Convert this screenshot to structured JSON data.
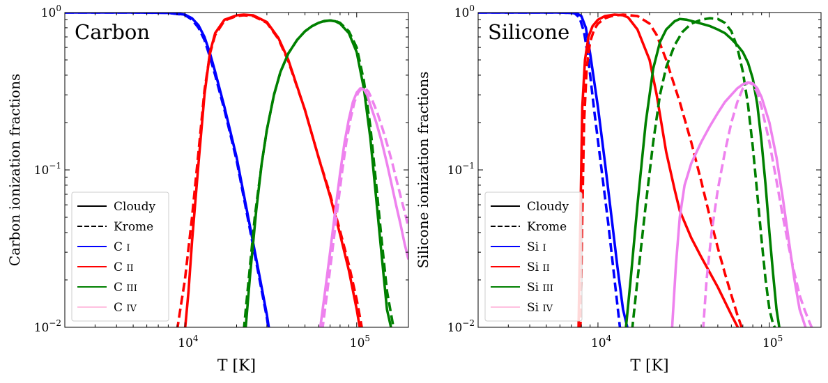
{
  "chart_data": [
    {
      "type": "line",
      "panel_label": "Carbon",
      "xlabel": "T [K]",
      "ylabel": "Carbon ionization fractions",
      "xscale": "log",
      "yscale": "log",
      "xlim": [
        2000,
        200000
      ],
      "ylim": [
        0.01,
        1
      ],
      "x_tick_labels": [
        {
          "base": "10",
          "exp": "4",
          "value": 10000
        },
        {
          "base": "10",
          "exp": "5",
          "value": 100000
        }
      ],
      "y_tick_labels": [
        {
          "base": "10",
          "exp": "0",
          "value": 1
        },
        {
          "base": "10",
          "exp": "−1",
          "value": 0.1
        },
        {
          "base": "10",
          "exp": "−2",
          "value": 0.01
        }
      ],
      "legend": {
        "position": "lower-left",
        "entries": [
          {
            "label": "Cloudy",
            "style": "solid",
            "color": "#000000"
          },
          {
            "label": "Krome",
            "style": "dashed",
            "color": "#000000"
          },
          {
            "label": "C I",
            "style": "solid",
            "color": "#0000ff"
          },
          {
            "label": "C II",
            "style": "solid",
            "color": "#ff0000"
          },
          {
            "label": "C III",
            "style": "solid",
            "color": "#008000"
          },
          {
            "label": "C IV",
            "style": "solid",
            "color": "#ffc0e0"
          }
        ]
      },
      "series": [
        {
          "name": "C I Cloudy",
          "color": "#0000ff",
          "style": "solid",
          "x": [
            2000,
            5000,
            8000,
            10000,
            11000,
            12000,
            13000,
            14000,
            15000,
            17000,
            20000,
            24000,
            27000,
            30000,
            31000
          ],
          "y": [
            1,
            1,
            0.995,
            0.97,
            0.92,
            0.83,
            0.7,
            0.55,
            0.42,
            0.25,
            0.12,
            0.043,
            0.022,
            0.012,
            0.0095
          ]
        },
        {
          "name": "C I Krome",
          "color": "#0000ff",
          "style": "dashed",
          "x": [
            2000,
            5000,
            8000,
            10000,
            11000,
            12000,
            13000,
            14000,
            15000,
            17000,
            20000,
            24000,
            27000,
            30000,
            31000
          ],
          "y": [
            1,
            1,
            0.995,
            0.965,
            0.9,
            0.8,
            0.67,
            0.52,
            0.4,
            0.24,
            0.115,
            0.041,
            0.021,
            0.0115,
            0.009
          ]
        },
        {
          "name": "C II Cloudy",
          "color": "#ff0000",
          "style": "solid",
          "x": [
            10000,
            10500,
            11000,
            12000,
            13000,
            14000,
            15000,
            17000,
            20000,
            22000,
            25000,
            30000,
            35000,
            40000,
            50000,
            60000,
            70000,
            80000,
            90000,
            100000,
            105000
          ],
          "y": [
            0.0095,
            0.017,
            0.035,
            0.11,
            0.3,
            0.56,
            0.74,
            0.9,
            0.96,
            0.97,
            0.96,
            0.87,
            0.69,
            0.5,
            0.24,
            0.12,
            0.068,
            0.039,
            0.023,
            0.013,
            0.0095
          ]
        },
        {
          "name": "C II Krome",
          "color": "#ff0000",
          "style": "dashed",
          "x": [
            9000,
            9500,
            10000,
            11000,
            12000,
            13000,
            14000,
            15000,
            17000,
            20000,
            22000,
            25000,
            30000,
            35000,
            40000,
            50000,
            60000,
            70000,
            80000,
            90000,
            100000,
            108000
          ],
          "y": [
            0.0095,
            0.014,
            0.02,
            0.05,
            0.13,
            0.32,
            0.55,
            0.72,
            0.89,
            0.95,
            0.96,
            0.95,
            0.86,
            0.68,
            0.49,
            0.24,
            0.12,
            0.07,
            0.041,
            0.025,
            0.015,
            0.0095
          ]
        },
        {
          "name": "C III Cloudy",
          "color": "#008000",
          "style": "solid",
          "x": [
            22500,
            24000,
            26000,
            28000,
            30000,
            33000,
            36000,
            40000,
            45000,
            50000,
            55000,
            60000,
            65000,
            70000,
            75000,
            80000,
            90000,
            100000,
            110000,
            120000,
            130000,
            140000,
            150000,
            160000
          ],
          "y": [
            0.0095,
            0.022,
            0.055,
            0.11,
            0.18,
            0.3,
            0.42,
            0.55,
            0.67,
            0.76,
            0.82,
            0.86,
            0.885,
            0.89,
            0.88,
            0.85,
            0.74,
            0.56,
            0.33,
            0.16,
            0.065,
            0.028,
            0.013,
            0.0095
          ]
        },
        {
          "name": "C III Krome",
          "color": "#008000",
          "style": "dashed",
          "x": [
            22000,
            23500,
            25500,
            28000,
            30000,
            33000,
            36000,
            40000,
            45000,
            50000,
            55000,
            60000,
            65000,
            70000,
            75000,
            80000,
            90000,
            100000,
            110000,
            120000,
            130000,
            140000,
            150000,
            165000
          ],
          "y": [
            0.0095,
            0.02,
            0.05,
            0.11,
            0.18,
            0.3,
            0.42,
            0.55,
            0.67,
            0.76,
            0.82,
            0.86,
            0.88,
            0.89,
            0.885,
            0.86,
            0.76,
            0.6,
            0.37,
            0.19,
            0.08,
            0.035,
            0.017,
            0.0095
          ]
        },
        {
          "name": "C IV Cloudy",
          "color": "#ee82ee",
          "style": "solid",
          "x": [
            61000,
            65000,
            70000,
            75000,
            80000,
            85000,
            90000,
            95000,
            100000,
            105000,
            110000,
            115000,
            120000,
            130000,
            140000,
            150000,
            160000,
            170000,
            180000,
            190000,
            200000
          ],
          "y": [
            0.0095,
            0.016,
            0.03,
            0.055,
            0.095,
            0.15,
            0.21,
            0.27,
            0.31,
            0.33,
            0.325,
            0.3,
            0.26,
            0.2,
            0.15,
            0.11,
            0.08,
            0.059,
            0.045,
            0.034,
            0.027
          ]
        },
        {
          "name": "C IV Krome",
          "color": "#ee82ee",
          "style": "dashed",
          "x": [
            63000,
            67000,
            72000,
            77000,
            82000,
            87000,
            92000,
            97000,
            102000,
            107000,
            112000,
            117000,
            122000,
            132000,
            142000,
            152000,
            162000,
            172000,
            182000,
            192000,
            200000
          ],
          "y": [
            0.0095,
            0.016,
            0.03,
            0.055,
            0.095,
            0.15,
            0.21,
            0.27,
            0.31,
            0.33,
            0.33,
            0.315,
            0.285,
            0.23,
            0.18,
            0.14,
            0.108,
            0.083,
            0.065,
            0.052,
            0.043
          ]
        }
      ]
    },
    {
      "type": "line",
      "panel_label": "Silicone",
      "xlabel": "T [K]",
      "ylabel": "Silicone ionization fractions",
      "xscale": "log",
      "yscale": "log",
      "xlim": [
        2000,
        200000
      ],
      "ylim": [
        0.01,
        1
      ],
      "x_tick_labels": [
        {
          "base": "10",
          "exp": "4",
          "value": 10000
        },
        {
          "base": "10",
          "exp": "5",
          "value": 100000
        }
      ],
      "y_tick_labels": [
        {
          "base": "10",
          "exp": "0",
          "value": 1
        },
        {
          "base": "10",
          "exp": "−1",
          "value": 0.1
        },
        {
          "base": "10",
          "exp": "−2",
          "value": 0.01
        }
      ],
      "legend": {
        "position": "lower-left",
        "entries": [
          {
            "label": "Cloudy",
            "style": "solid",
            "color": "#000000"
          },
          {
            "label": "Krome",
            "style": "dashed",
            "color": "#000000"
          },
          {
            "label": "Si I",
            "style": "solid",
            "color": "#0000ff"
          },
          {
            "label": "Si II",
            "style": "solid",
            "color": "#ff0000"
          },
          {
            "label": "Si III",
            "style": "solid",
            "color": "#008000"
          },
          {
            "label": "Si IV",
            "style": "solid",
            "color": "#ffc0e0"
          }
        ]
      },
      "series": [
        {
          "name": "Si I Cloudy",
          "color": "#0000ff",
          "style": "solid",
          "x": [
            2000,
            6000,
            7500,
            8000,
            8500,
            9000,
            10000,
            11000,
            12000,
            13000,
            14000,
            15000
          ],
          "y": [
            1,
            1,
            0.99,
            0.95,
            0.8,
            0.55,
            0.25,
            0.11,
            0.05,
            0.024,
            0.013,
            0.0095
          ]
        },
        {
          "name": "Si I Krome",
          "color": "#0000ff",
          "style": "dashed",
          "x": [
            2000,
            6000,
            7300,
            7800,
            8300,
            8800,
            9500,
            10500,
            11500,
            12500,
            13500
          ],
          "y": [
            1,
            1,
            0.99,
            0.93,
            0.75,
            0.5,
            0.24,
            0.1,
            0.045,
            0.02,
            0.0095
          ]
        },
        {
          "name": "Si II Cloudy",
          "color": "#ff0000",
          "style": "solid",
          "x": [
            7700,
            7900,
            8100,
            8400,
            8800,
            9300,
            10000,
            11000,
            12500,
            14000,
            15000,
            17000,
            20000,
            22000,
            25000,
            28000,
            30000,
            35000,
            40000,
            50000,
            60000,
            67000
          ],
          "y": [
            0.0095,
            0.05,
            0.25,
            0.5,
            0.7,
            0.82,
            0.9,
            0.95,
            0.97,
            0.96,
            0.93,
            0.78,
            0.5,
            0.3,
            0.13,
            0.075,
            0.055,
            0.037,
            0.028,
            0.018,
            0.012,
            0.0095
          ]
        },
        {
          "name": "Si II Krome",
          "color": "#ff0000",
          "style": "dashed",
          "x": [
            7900,
            8100,
            8300,
            8600,
            9000,
            9500,
            10000,
            11000,
            12000,
            14000,
            17000,
            20000,
            22000,
            25000,
            30000,
            35000,
            40000,
            45000,
            50000,
            55000,
            60000,
            65000,
            70000
          ],
          "y": [
            0.0095,
            0.05,
            0.2,
            0.45,
            0.65,
            0.78,
            0.85,
            0.92,
            0.95,
            0.97,
            0.95,
            0.85,
            0.72,
            0.5,
            0.27,
            0.15,
            0.085,
            0.05,
            0.032,
            0.022,
            0.016,
            0.012,
            0.0095
          ]
        },
        {
          "name": "Si III Cloudy",
          "color": "#008000",
          "style": "solid",
          "x": [
            14500,
            15500,
            17000,
            19000,
            21000,
            23000,
            25000,
            28000,
            30000,
            33000,
            37000,
            40000,
            45000,
            50000,
            55000,
            60000,
            65000,
            70000,
            75000,
            80000,
            85000,
            90000,
            95000,
            100000,
            105000,
            110000,
            115000
          ],
          "y": [
            0.0095,
            0.02,
            0.06,
            0.2,
            0.44,
            0.65,
            0.78,
            0.88,
            0.91,
            0.9,
            0.87,
            0.85,
            0.82,
            0.78,
            0.74,
            0.68,
            0.62,
            0.56,
            0.48,
            0.38,
            0.26,
            0.15,
            0.08,
            0.04,
            0.022,
            0.013,
            0.0095
          ]
        },
        {
          "name": "Si III Krome",
          "color": "#008000",
          "style": "dashed",
          "x": [
            15800,
            17000,
            19000,
            21000,
            23000,
            25000,
            28000,
            31000,
            35000,
            40000,
            45000,
            50000,
            55000,
            60000,
            65000,
            70000,
            75000,
            80000,
            85000,
            90000,
            95000,
            100000,
            105000,
            110000
          ],
          "y": [
            0.0095,
            0.02,
            0.06,
            0.15,
            0.3,
            0.45,
            0.62,
            0.75,
            0.85,
            0.9,
            0.92,
            0.91,
            0.86,
            0.76,
            0.6,
            0.42,
            0.26,
            0.14,
            0.07,
            0.036,
            0.02,
            0.013,
            0.0105,
            0.0095
          ]
        },
        {
          "name": "Si IV Cloudy",
          "color": "#ee82ee",
          "style": "solid",
          "x": [
            27000,
            28500,
            30000,
            32000,
            35000,
            40000,
            45000,
            50000,
            55000,
            60000,
            65000,
            70000,
            75000,
            80000,
            85000,
            90000,
            100000,
            110000,
            120000,
            130000,
            140000,
            150000,
            160000,
            165000
          ],
          "y": [
            0.0095,
            0.025,
            0.05,
            0.08,
            0.11,
            0.15,
            0.19,
            0.23,
            0.27,
            0.3,
            0.33,
            0.35,
            0.36,
            0.355,
            0.33,
            0.29,
            0.2,
            0.12,
            0.065,
            0.035,
            0.02,
            0.013,
            0.0105,
            0.0095
          ]
        },
        {
          "name": "Si IV Krome",
          "color": "#ee82ee",
          "style": "dashed",
          "x": [
            41000,
            43000,
            46000,
            50000,
            55000,
            60000,
            65000,
            70000,
            75000,
            80000,
            85000,
            90000,
            100000,
            110000,
            120000,
            130000,
            140000,
            150000,
            160000,
            170000,
            180000
          ],
          "y": [
            0.0095,
            0.02,
            0.04,
            0.075,
            0.13,
            0.2,
            0.27,
            0.33,
            0.36,
            0.35,
            0.31,
            0.25,
            0.15,
            0.085,
            0.05,
            0.032,
            0.022,
            0.016,
            0.013,
            0.011,
            0.0095
          ]
        }
      ]
    }
  ]
}
